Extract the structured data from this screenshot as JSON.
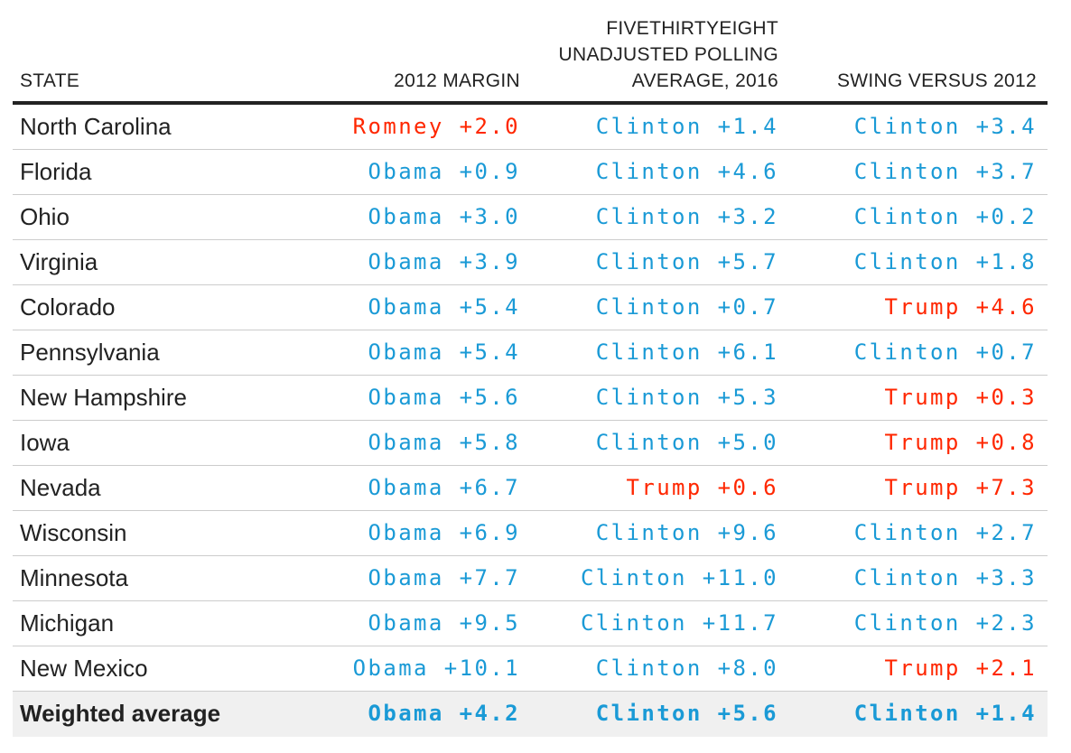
{
  "colors": {
    "dem": "#1a9ad6",
    "rep": "#ff2700"
  },
  "headers": {
    "state": "STATE",
    "margin": "2012 MARGIN",
    "poll": [
      "FIVETHIRTYEIGHT",
      "UNADJUSTED POLLING",
      "AVERAGE, 2016"
    ],
    "swing": "SWING VERSUS 2012"
  },
  "rows": [
    {
      "state": "North Carolina",
      "margin": "Romney +2.0",
      "margin_party": "rep",
      "poll": "Clinton +1.4",
      "poll_party": "dem",
      "swing": "Clinton +3.4",
      "swing_party": "dem"
    },
    {
      "state": "Florida",
      "margin": "Obama +0.9",
      "margin_party": "dem",
      "poll": "Clinton +4.6",
      "poll_party": "dem",
      "swing": "Clinton +3.7",
      "swing_party": "dem"
    },
    {
      "state": "Ohio",
      "margin": "Obama +3.0",
      "margin_party": "dem",
      "poll": "Clinton +3.2",
      "poll_party": "dem",
      "swing": "Clinton +0.2",
      "swing_party": "dem"
    },
    {
      "state": "Virginia",
      "margin": "Obama +3.9",
      "margin_party": "dem",
      "poll": "Clinton +5.7",
      "poll_party": "dem",
      "swing": "Clinton +1.8",
      "swing_party": "dem"
    },
    {
      "state": "Colorado",
      "margin": "Obama +5.4",
      "margin_party": "dem",
      "poll": "Clinton +0.7",
      "poll_party": "dem",
      "swing": "Trump +4.6",
      "swing_party": "rep"
    },
    {
      "state": "Pennsylvania",
      "margin": "Obama +5.4",
      "margin_party": "dem",
      "poll": "Clinton +6.1",
      "poll_party": "dem",
      "swing": "Clinton +0.7",
      "swing_party": "dem"
    },
    {
      "state": "New Hampshire",
      "margin": "Obama +5.6",
      "margin_party": "dem",
      "poll": "Clinton +5.3",
      "poll_party": "dem",
      "swing": "Trump +0.3",
      "swing_party": "rep"
    },
    {
      "state": "Iowa",
      "margin": "Obama +5.8",
      "margin_party": "dem",
      "poll": "Clinton +5.0",
      "poll_party": "dem",
      "swing": "Trump +0.8",
      "swing_party": "rep"
    },
    {
      "state": "Nevada",
      "margin": "Obama +6.7",
      "margin_party": "dem",
      "poll": "Trump +0.6",
      "poll_party": "rep",
      "swing": "Trump +7.3",
      "swing_party": "rep"
    },
    {
      "state": "Wisconsin",
      "margin": "Obama +6.9",
      "margin_party": "dem",
      "poll": "Clinton +9.6",
      "poll_party": "dem",
      "swing": "Clinton +2.7",
      "swing_party": "dem"
    },
    {
      "state": "Minnesota",
      "margin": "Obama +7.7",
      "margin_party": "dem",
      "poll": "Clinton +11.0",
      "poll_party": "dem",
      "swing": "Clinton +3.3",
      "swing_party": "dem"
    },
    {
      "state": "Michigan",
      "margin": "Obama +9.5",
      "margin_party": "dem",
      "poll": "Clinton +11.7",
      "poll_party": "dem",
      "swing": "Clinton +2.3",
      "swing_party": "dem"
    },
    {
      "state": "New Mexico",
      "margin": "Obama +10.1",
      "margin_party": "dem",
      "poll": "Clinton +8.0",
      "poll_party": "dem",
      "swing": "Trump +2.1",
      "swing_party": "rep"
    }
  ],
  "average": {
    "state": "Weighted average",
    "margin": "Obama +4.2",
    "margin_party": "dem",
    "poll": "Clinton +5.6",
    "poll_party": "dem",
    "swing": "Clinton +1.4",
    "swing_party": "dem"
  }
}
